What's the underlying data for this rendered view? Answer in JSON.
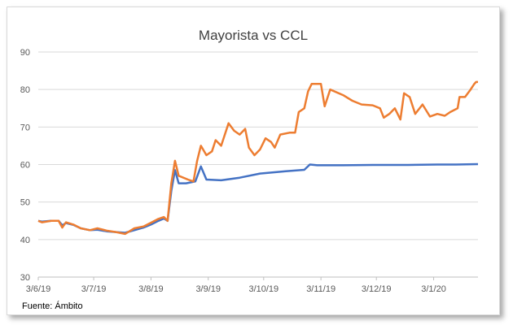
{
  "chart_data": {
    "type": "line",
    "title": "Mayorista vs CCL",
    "xlabel": "",
    "ylabel": "",
    "ylim": [
      30,
      90
    ],
    "yticks": [
      30,
      40,
      50,
      60,
      70,
      80,
      90
    ],
    "xlim": [
      "2019-06-03",
      "2020-01-27"
    ],
    "xticks": [
      {
        "label": "3/6/19",
        "date": "2019-06-03"
      },
      {
        "label": "3/7/19",
        "date": "2019-07-03"
      },
      {
        "label": "3/8/19",
        "date": "2019-08-03"
      },
      {
        "label": "3/9/19",
        "date": "2019-09-03"
      },
      {
        "label": "3/10/19",
        "date": "2019-10-03"
      },
      {
        "label": "3/11/19",
        "date": "2019-11-03"
      },
      {
        "label": "3/12/19",
        "date": "2019-12-03"
      },
      {
        "label": "3/1/20",
        "date": "2020-01-03"
      }
    ],
    "grid": true,
    "legend": "none",
    "series": [
      {
        "color": "#4472c4",
        "points": [
          [
            "2019-06-03",
            45.0
          ],
          [
            "2019-06-05",
            44.8
          ],
          [
            "2019-06-10",
            45.0
          ],
          [
            "2019-06-14",
            45.0
          ],
          [
            "2019-06-16",
            43.8
          ],
          [
            "2019-06-18",
            44.4
          ],
          [
            "2019-06-22",
            43.9
          ],
          [
            "2019-06-26",
            43.0
          ],
          [
            "2019-07-01",
            42.5
          ],
          [
            "2019-07-05",
            42.6
          ],
          [
            "2019-07-10",
            42.2
          ],
          [
            "2019-07-15",
            42.0
          ],
          [
            "2019-07-20",
            41.8
          ],
          [
            "2019-07-25",
            42.5
          ],
          [
            "2019-07-30",
            43.2
          ],
          [
            "2019-08-03",
            44.0
          ],
          [
            "2019-08-07",
            45.0
          ],
          [
            "2019-08-10",
            45.6
          ],
          [
            "2019-08-12",
            45.0
          ],
          [
            "2019-08-14",
            53.0
          ],
          [
            "2019-08-16",
            58.5
          ],
          [
            "2019-08-18",
            55.0
          ],
          [
            "2019-08-22",
            55.0
          ],
          [
            "2019-08-27",
            55.5
          ],
          [
            "2019-08-30",
            59.5
          ],
          [
            "2019-09-02",
            56.0
          ],
          [
            "2019-09-10",
            55.8
          ],
          [
            "2019-09-20",
            56.5
          ],
          [
            "2019-10-01",
            57.6
          ],
          [
            "2019-10-15",
            58.2
          ],
          [
            "2019-10-25",
            58.6
          ],
          [
            "2019-10-28",
            60.0
          ],
          [
            "2019-11-01",
            59.8
          ],
          [
            "2019-11-15",
            59.8
          ],
          [
            "2019-12-01",
            59.9
          ],
          [
            "2019-12-20",
            59.9
          ],
          [
            "2020-01-05",
            60.0
          ],
          [
            "2020-01-15",
            60.0
          ],
          [
            "2020-01-27",
            60.1
          ]
        ]
      },
      {
        "color": "#ed7d31",
        "points": [
          [
            "2019-06-03",
            45.0
          ],
          [
            "2019-06-05",
            44.6
          ],
          [
            "2019-06-10",
            45.0
          ],
          [
            "2019-06-14",
            45.0
          ],
          [
            "2019-06-16",
            43.2
          ],
          [
            "2019-06-18",
            44.6
          ],
          [
            "2019-06-22",
            44.0
          ],
          [
            "2019-06-26",
            43.0
          ],
          [
            "2019-07-01",
            42.5
          ],
          [
            "2019-07-05",
            43.0
          ],
          [
            "2019-07-10",
            42.4
          ],
          [
            "2019-07-15",
            42.0
          ],
          [
            "2019-07-20",
            41.5
          ],
          [
            "2019-07-25",
            43.0
          ],
          [
            "2019-07-30",
            43.5
          ],
          [
            "2019-08-03",
            44.5
          ],
          [
            "2019-08-07",
            45.5
          ],
          [
            "2019-08-10",
            46.0
          ],
          [
            "2019-08-12",
            45.0
          ],
          [
            "2019-08-14",
            55.0
          ],
          [
            "2019-08-16",
            61.0
          ],
          [
            "2019-08-18",
            57.0
          ],
          [
            "2019-08-23",
            56.0
          ],
          [
            "2019-08-26",
            55.5
          ],
          [
            "2019-08-28",
            61.0
          ],
          [
            "2019-08-30",
            65.0
          ],
          [
            "2019-09-02",
            62.5
          ],
          [
            "2019-09-05",
            63.5
          ],
          [
            "2019-09-07",
            66.5
          ],
          [
            "2019-09-10",
            65.0
          ],
          [
            "2019-09-14",
            71.0
          ],
          [
            "2019-09-17",
            69.0
          ],
          [
            "2019-09-20",
            68.0
          ],
          [
            "2019-09-23",
            69.5
          ],
          [
            "2019-09-25",
            64.5
          ],
          [
            "2019-09-28",
            62.5
          ],
          [
            "2019-10-01",
            64.0
          ],
          [
            "2019-10-04",
            67.0
          ],
          [
            "2019-10-07",
            66.0
          ],
          [
            "2019-10-09",
            64.5
          ],
          [
            "2019-10-12",
            68.0
          ],
          [
            "2019-10-17",
            68.5
          ],
          [
            "2019-10-20",
            68.5
          ],
          [
            "2019-10-22",
            74.0
          ],
          [
            "2019-10-25",
            75.0
          ],
          [
            "2019-10-27",
            79.5
          ],
          [
            "2019-10-29",
            81.5
          ],
          [
            "2019-11-03",
            81.5
          ],
          [
            "2019-11-05",
            75.5
          ],
          [
            "2019-11-08",
            80.0
          ],
          [
            "2019-11-15",
            78.5
          ],
          [
            "2019-11-20",
            77.0
          ],
          [
            "2019-11-25",
            76.0
          ],
          [
            "2019-12-01",
            75.8
          ],
          [
            "2019-12-05",
            75.0
          ],
          [
            "2019-12-07",
            72.5
          ],
          [
            "2019-12-10",
            73.5
          ],
          [
            "2019-12-13",
            75.0
          ],
          [
            "2019-12-16",
            72.0
          ],
          [
            "2019-12-18",
            79.0
          ],
          [
            "2019-12-21",
            78.0
          ],
          [
            "2019-12-24",
            73.5
          ],
          [
            "2019-12-28",
            76.0
          ],
          [
            "2020-01-01",
            72.8
          ],
          [
            "2020-01-05",
            73.5
          ],
          [
            "2020-01-09",
            73.0
          ],
          [
            "2020-01-12",
            74.0
          ],
          [
            "2020-01-16",
            75.0
          ],
          [
            "2020-01-17",
            78.0
          ],
          [
            "2020-01-20",
            78.0
          ],
          [
            "2020-01-23",
            80.0
          ],
          [
            "2020-01-25",
            81.5
          ],
          [
            "2020-01-26",
            82.0
          ],
          [
            "2020-01-27",
            82.0
          ]
        ]
      }
    ]
  },
  "source_note": "Fuente: Ámbito"
}
